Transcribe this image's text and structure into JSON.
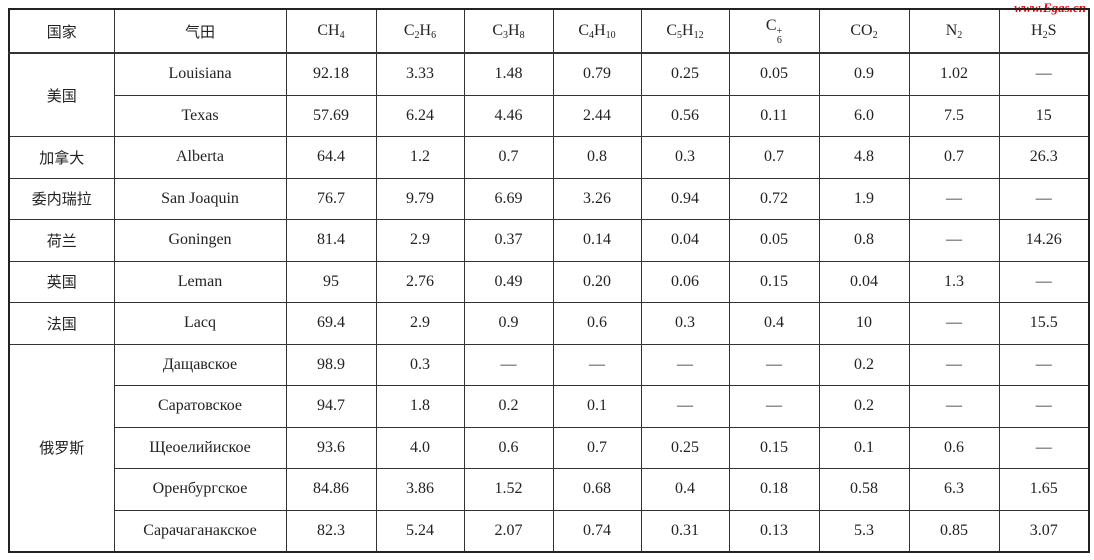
{
  "watermark": "www.Egas.cn",
  "table": {
    "headers": [
      [
        {
          "t": "国家"
        }
      ],
      [
        {
          "t": "气田"
        }
      ],
      [
        {
          "t": "CH"
        },
        {
          "sub": "4"
        }
      ],
      [
        {
          "t": "C"
        },
        {
          "sub": "2"
        },
        {
          "t": "H"
        },
        {
          "sub": "6"
        }
      ],
      [
        {
          "t": "C"
        },
        {
          "sub": "3"
        },
        {
          "t": "H"
        },
        {
          "sub": "8"
        }
      ],
      [
        {
          "t": "C"
        },
        {
          "sub": "4"
        },
        {
          "t": "H"
        },
        {
          "sub": "10"
        }
      ],
      [
        {
          "t": "C"
        },
        {
          "sub": "5"
        },
        {
          "t": "H"
        },
        {
          "sub": "12"
        }
      ],
      [
        {
          "t": "C"
        },
        {
          "supsub": [
            "+",
            "6"
          ]
        }
      ],
      [
        {
          "t": "CO"
        },
        {
          "sub": "2"
        }
      ],
      [
        {
          "t": "N"
        },
        {
          "sub": "2"
        }
      ],
      [
        {
          "t": "H"
        },
        {
          "sub": "2"
        },
        {
          "t": "S"
        }
      ]
    ],
    "groups": [
      {
        "country": "美国",
        "rows": [
          [
            "Louisiana",
            "92.18",
            "3.33",
            "1.48",
            "0.79",
            "0.25",
            "0.05",
            "0.9",
            "1.02",
            "—"
          ],
          [
            "Texas",
            "57.69",
            "6.24",
            "4.46",
            "2.44",
            "0.56",
            "0.11",
            "6.0",
            "7.5",
            "15"
          ]
        ]
      },
      {
        "country": "加拿大",
        "rows": [
          [
            "Alberta",
            "64.4",
            "1.2",
            "0.7",
            "0.8",
            "0.3",
            "0.7",
            "4.8",
            "0.7",
            "26.3"
          ]
        ]
      },
      {
        "country": "委内瑞拉",
        "rows": [
          [
            "San  Joaquin",
            "76.7",
            "9.79",
            "6.69",
            "3.26",
            "0.94",
            "0.72",
            "1.9",
            "—",
            "—"
          ]
        ]
      },
      {
        "country": "荷兰",
        "rows": [
          [
            "Goningen",
            "81.4",
            "2.9",
            "0.37",
            "0.14",
            "0.04",
            "0.05",
            "0.8",
            "—",
            "14.26"
          ]
        ]
      },
      {
        "country": "英国",
        "rows": [
          [
            "Leman",
            "95",
            "2.76",
            "0.49",
            "0.20",
            "0.06",
            "0.15",
            "0.04",
            "1.3",
            "—"
          ]
        ]
      },
      {
        "country": "法国",
        "rows": [
          [
            "Lacq",
            "69.4",
            "2.9",
            "0.9",
            "0.6",
            "0.3",
            "0.4",
            "10",
            "—",
            "15.5"
          ]
        ]
      },
      {
        "country": "俄罗斯",
        "rows": [
          [
            "Дащавское",
            "98.9",
            "0.3",
            "—",
            "—",
            "—",
            "—",
            "0.2",
            "—",
            "—"
          ],
          [
            "Саратовское",
            "94.7",
            "1.8",
            "0.2",
            "0.1",
            "—",
            "—",
            "0.2",
            "—",
            "—"
          ],
          [
            "Щеоелийиское",
            "93.6",
            "4.0",
            "0.6",
            "0.7",
            "0.25",
            "0.15",
            "0.1",
            "0.6",
            "—"
          ],
          [
            "Оренбургское",
            "84.86",
            "3.86",
            "1.52",
            "0.68",
            "0.4",
            "0.18",
            "0.58",
            "6.3",
            "1.65"
          ],
          [
            "Сарачаганакское",
            "82.3",
            "5.24",
            "2.07",
            "0.74",
            "0.31",
            "0.13",
            "5.3",
            "0.85",
            "3.07"
          ]
        ]
      }
    ]
  }
}
